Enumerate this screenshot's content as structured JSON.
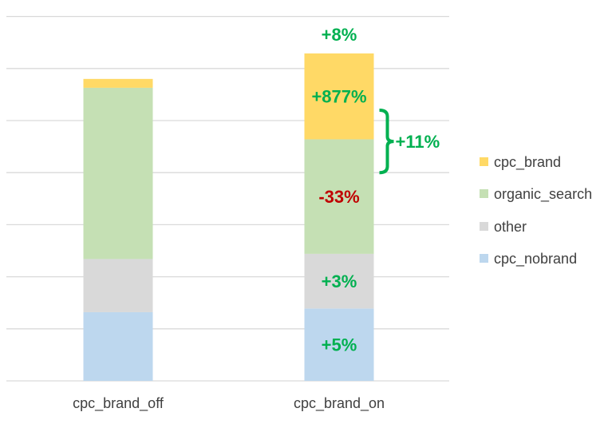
{
  "chart_data": {
    "type": "bar",
    "stacked": true,
    "categories": [
      "cpc_brand_off",
      "cpc_brand_on"
    ],
    "series": [
      {
        "name": "cpc_nobrand",
        "values": [
          1.32,
          1.39
        ],
        "color": "#BDD7EE"
      },
      {
        "name": "other",
        "values": [
          1.02,
          1.05
        ],
        "color": "#D9D9D9"
      },
      {
        "name": "organic_search",
        "values": [
          3.29,
          2.2
        ],
        "color": "#C5E0B4"
      },
      {
        "name": "cpc_brand",
        "values": [
          0.17,
          1.65
        ],
        "color": "#FFD966"
      }
    ],
    "ylim": [
      0,
      7
    ],
    "y_ticks_labeled": false,
    "grid": true,
    "legend_placement": "right",
    "legend_order": [
      "cpc_brand",
      "organic_search",
      "other",
      "cpc_nobrand"
    ],
    "annotations": [
      {
        "text": "+5%",
        "category": "cpc_brand_on",
        "series": "cpc_nobrand",
        "color": "#00B050"
      },
      {
        "text": "+3%",
        "category": "cpc_brand_on",
        "series": "other",
        "color": "#00B050"
      },
      {
        "text": "-33%",
        "category": "cpc_brand_on",
        "series": "organic_search",
        "color": "#C00000"
      },
      {
        "text": "+877%",
        "category": "cpc_brand_on",
        "series": "cpc_brand",
        "color": "#00B050"
      },
      {
        "text": "+8%",
        "category": "cpc_brand_on",
        "position": "total",
        "color": "#00B050"
      },
      {
        "text": "+11%",
        "category": "cpc_brand_on",
        "position": "brace",
        "color": "#00B050"
      }
    ]
  }
}
